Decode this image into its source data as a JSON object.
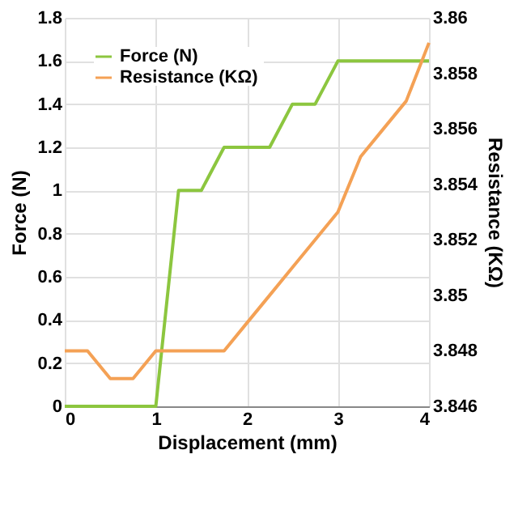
{
  "chart_data": {
    "type": "line",
    "xlabel": "Displacement (mm)",
    "ylabel": "Force (N)",
    "y2label": "Resistance (KΩ)",
    "x": [
      0,
      0.25,
      0.5,
      0.75,
      1,
      1.25,
      1.5,
      1.75,
      2,
      2.25,
      2.5,
      2.75,
      3,
      3.25,
      3.5,
      3.75,
      4
    ],
    "series": [
      {
        "name": "Force (N)",
        "color": "#8cc63f",
        "values": [
          0,
          0,
          0,
          0,
          0,
          1,
          1,
          1.2,
          1.2,
          1.2,
          1.4,
          1.4,
          1.6,
          1.6,
          1.6,
          1.6,
          1.6
        ]
      },
      {
        "name": "Resistance  (KΩ)",
        "color": "#f4a155",
        "axis": "y2",
        "values": [
          3.848,
          3.848,
          3.847,
          3.847,
          3.848,
          3.848,
          3.848,
          3.848,
          3.849,
          3.85,
          3.851,
          3.852,
          3.853,
          3.855,
          3.856,
          3.857,
          3.8591
        ]
      }
    ],
    "xlim": [
      0,
      4
    ],
    "xticks": [
      0,
      1,
      2,
      3,
      4
    ],
    "ylim": [
      0,
      1.8
    ],
    "yticks": [
      0,
      0.2,
      0.4,
      0.6,
      0.8,
      1,
      1.2,
      1.4,
      1.6,
      1.8
    ],
    "y2lim": [
      3.846,
      3.86
    ],
    "y2ticks": [
      3.846,
      3.848,
      3.85,
      3.852,
      3.854,
      3.856,
      3.858,
      3.86
    ],
    "grid": true,
    "legend": "top left",
    "line_style": "solid",
    "marker": "none"
  }
}
